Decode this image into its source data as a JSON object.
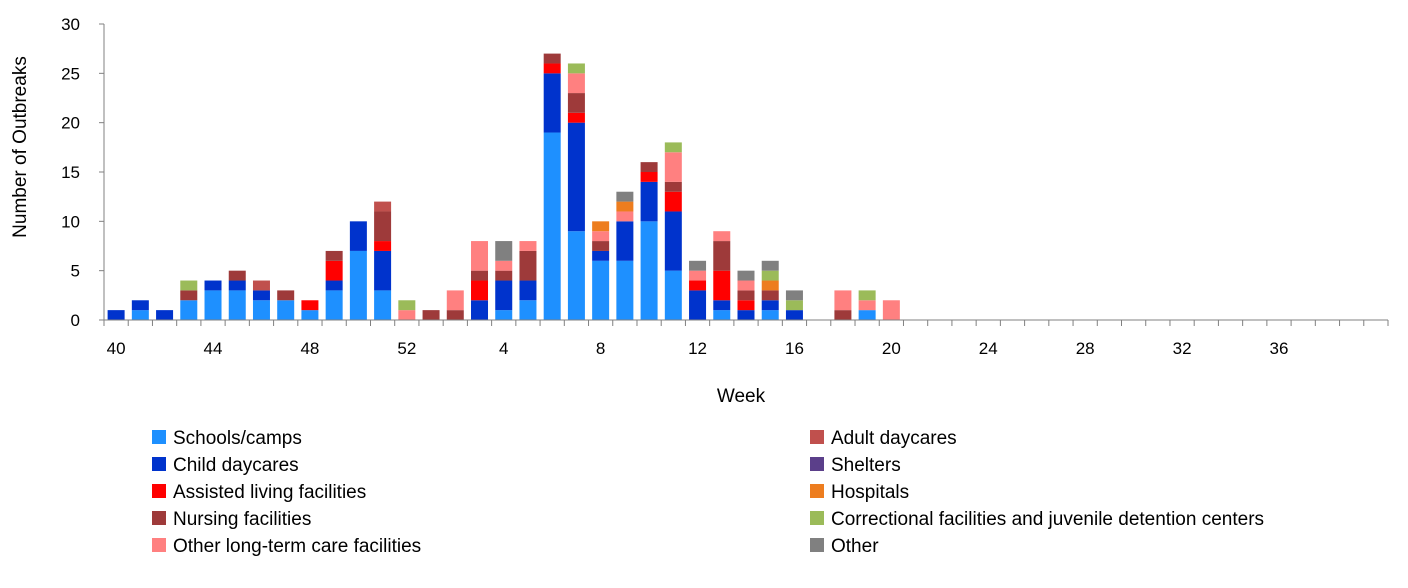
{
  "chart_data": {
    "type": "bar",
    "stacked": true,
    "xlabel": "Week",
    "ylabel": "Number of Outbreaks",
    "ylim": [
      0,
      30
    ],
    "yticks": [
      0,
      5,
      10,
      15,
      20,
      25,
      30
    ],
    "x_tick_labels": [
      "40",
      "44",
      "48",
      "52",
      "4",
      "8",
      "12",
      "16",
      "20",
      "24",
      "28",
      "32",
      "36"
    ],
    "categories": [
      "40",
      "41",
      "42",
      "43",
      "44",
      "45",
      "46",
      "47",
      "48",
      "49",
      "50",
      "51",
      "52",
      "53",
      "1",
      "2",
      "3",
      "4",
      "5",
      "6",
      "7",
      "8",
      "9",
      "10",
      "11",
      "12",
      "13",
      "14",
      "15",
      "16",
      "17",
      "18",
      "19",
      "20",
      "21",
      "22",
      "23",
      "24",
      "25",
      "26",
      "27",
      "28",
      "29",
      "30",
      "31",
      "32",
      "33",
      "34",
      "35",
      "36",
      "37",
      "38",
      "39"
    ],
    "grid": false,
    "legend_position": "bottom",
    "series": [
      {
        "name": "Schools/camps",
        "color": "#1e90ff",
        "values": [
          0,
          1,
          0,
          2,
          3,
          3,
          2,
          2,
          1,
          3,
          7,
          3,
          0,
          0,
          0,
          0,
          1,
          2,
          19,
          9,
          6,
          6,
          10,
          5,
          0,
          1,
          0,
          1,
          0,
          0,
          0,
          1,
          0,
          0,
          0,
          0,
          0,
          0,
          0,
          0,
          0,
          0,
          0,
          0,
          0,
          0,
          0,
          0,
          0,
          0,
          0,
          0,
          0
        ]
      },
      {
        "name": "Child daycares",
        "color": "#0033cc",
        "values": [
          1,
          1,
          1,
          0,
          1,
          1,
          1,
          0,
          0,
          1,
          3,
          4,
          0,
          0,
          0,
          2,
          3,
          2,
          6,
          11,
          1,
          4,
          4,
          6,
          3,
          1,
          1,
          1,
          1,
          0,
          0,
          0,
          0,
          0,
          0,
          0,
          0,
          0,
          0,
          0,
          0,
          0,
          0,
          0,
          0,
          0,
          0,
          0,
          0,
          0,
          0,
          0,
          0
        ]
      },
      {
        "name": "Assisted living facilities",
        "color": "#ff0000",
        "values": [
          0,
          0,
          0,
          0,
          0,
          0,
          0,
          0,
          1,
          2,
          0,
          1,
          0,
          0,
          0,
          2,
          0,
          0,
          1,
          1,
          0,
          0,
          1,
          2,
          1,
          3,
          1,
          0,
          0,
          0,
          0,
          0,
          0,
          0,
          0,
          0,
          0,
          0,
          0,
          0,
          0,
          0,
          0,
          0,
          0,
          0,
          0,
          0,
          0,
          0,
          0,
          0,
          0
        ]
      },
      {
        "name": "Nursing facilities",
        "color": "#9e3a3a",
        "values": [
          0,
          0,
          0,
          1,
          0,
          1,
          0,
          1,
          0,
          1,
          0,
          3,
          0,
          1,
          1,
          1,
          1,
          3,
          1,
          2,
          1,
          0,
          1,
          1,
          0,
          3,
          1,
          1,
          0,
          0,
          1,
          0,
          0,
          0,
          0,
          0,
          0,
          0,
          0,
          0,
          0,
          0,
          0,
          0,
          0,
          0,
          0,
          0,
          0,
          0,
          0,
          0,
          0
        ]
      },
      {
        "name": "Other long-term care facilities",
        "color": "#ff8080",
        "values": [
          0,
          0,
          0,
          0,
          0,
          0,
          0,
          0,
          0,
          0,
          0,
          0,
          1,
          0,
          2,
          3,
          1,
          1,
          0,
          2,
          1,
          1,
          0,
          3,
          1,
          1,
          1,
          0,
          0,
          0,
          2,
          1,
          2,
          0,
          0,
          0,
          0,
          0,
          0,
          0,
          0,
          0,
          0,
          0,
          0,
          0,
          0,
          0,
          0,
          0,
          0,
          0,
          0
        ]
      },
      {
        "name": "Adult daycares",
        "color": "#c0504d",
        "values": [
          0,
          0,
          0,
          0,
          0,
          0,
          1,
          0,
          0,
          0,
          0,
          1,
          0,
          0,
          0,
          0,
          0,
          0,
          0,
          0,
          0,
          0,
          0,
          0,
          0,
          0,
          0,
          0,
          0,
          0,
          0,
          0,
          0,
          0,
          0,
          0,
          0,
          0,
          0,
          0,
          0,
          0,
          0,
          0,
          0,
          0,
          0,
          0,
          0,
          0,
          0,
          0,
          0
        ]
      },
      {
        "name": "Shelters",
        "color": "#5b3f8a",
        "values": [
          0,
          0,
          0,
          0,
          0,
          0,
          0,
          0,
          0,
          0,
          0,
          0,
          0,
          0,
          0,
          0,
          0,
          0,
          0,
          0,
          0,
          0,
          0,
          0,
          0,
          0,
          0,
          0,
          0,
          0,
          0,
          0,
          0,
          0,
          0,
          0,
          0,
          0,
          0,
          0,
          0,
          0,
          0,
          0,
          0,
          0,
          0,
          0,
          0,
          0,
          0,
          0,
          0
        ]
      },
      {
        "name": "Hospitals",
        "color": "#ed7d1f",
        "values": [
          0,
          0,
          0,
          0,
          0,
          0,
          0,
          0,
          0,
          0,
          0,
          0,
          0,
          0,
          0,
          0,
          0,
          0,
          0,
          0,
          1,
          1,
          0,
          0,
          0,
          0,
          0,
          1,
          0,
          0,
          0,
          0,
          0,
          0,
          0,
          0,
          0,
          0,
          0,
          0,
          0,
          0,
          0,
          0,
          0,
          0,
          0,
          0,
          0,
          0,
          0,
          0,
          0
        ]
      },
      {
        "name": "Correctional facilities and juvenile detention centers",
        "color": "#9bbb59",
        "values": [
          0,
          0,
          0,
          1,
          0,
          0,
          0,
          0,
          0,
          0,
          0,
          0,
          1,
          0,
          0,
          0,
          0,
          0,
          0,
          1,
          0,
          0,
          0,
          1,
          0,
          0,
          0,
          1,
          1,
          0,
          0,
          1,
          0,
          0,
          0,
          0,
          0,
          0,
          0,
          0,
          0,
          0,
          0,
          0,
          0,
          0,
          0,
          0,
          0,
          0,
          0,
          0,
          0
        ]
      },
      {
        "name": "Other",
        "color": "#808080",
        "values": [
          0,
          0,
          0,
          0,
          0,
          0,
          0,
          0,
          0,
          0,
          0,
          0,
          0,
          0,
          0,
          0,
          2,
          0,
          0,
          0,
          0,
          1,
          0,
          0,
          1,
          0,
          1,
          1,
          1,
          0,
          0,
          0,
          0,
          0,
          0,
          0,
          0,
          0,
          0,
          0,
          0,
          0,
          0,
          0,
          0,
          0,
          0,
          0,
          0,
          0,
          0,
          0,
          0
        ]
      }
    ],
    "legend_order": [
      [
        "Schools/camps",
        "Adult daycares"
      ],
      [
        "Child daycares",
        "Shelters"
      ],
      [
        "Assisted living facilities",
        "Hospitals"
      ],
      [
        "Nursing facilities",
        "Correctional facilities and juvenile detention centers"
      ],
      [
        "Other long-term care facilities",
        "Other"
      ]
    ]
  }
}
